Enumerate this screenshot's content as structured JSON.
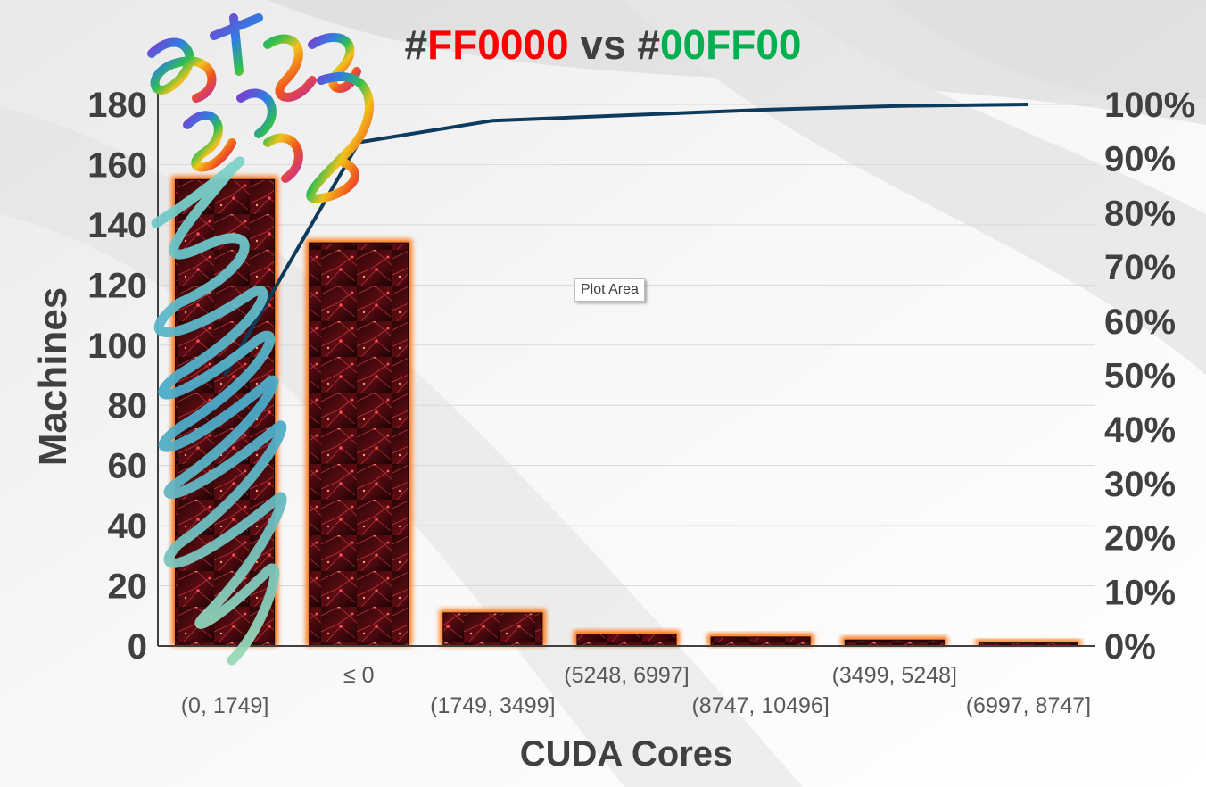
{
  "title": {
    "part1": "#",
    "part2": "FF0000",
    "part3": " vs #",
    "part4": "00FF00"
  },
  "tooltip": "Plot Area",
  "colors": {
    "title_dark": "#404040",
    "title_red": "#FF0000",
    "title_green": "#00B050",
    "bar_glow": "#FF6A00",
    "bar_fill": "#1a0505",
    "line": "#0E3A5C",
    "axis_text": "#404040"
  },
  "chart_data": {
    "type": "bar",
    "title": "#FF0000 vs #00FF00",
    "xlabel": "CUDA Cores",
    "ylabel": "Machines",
    "categories": [
      "(0, 1749]",
      "≤ 0",
      "(1749, 3499]",
      "(5248, 6997]",
      "(8747, 10496]",
      "(3499, 5248]",
      "(6997, 8747]"
    ],
    "values": [
      155,
      134,
      11,
      4,
      3,
      2,
      1
    ],
    "ylim": [
      0,
      180
    ],
    "yticks": [
      "0",
      "20",
      "40",
      "60",
      "80",
      "100",
      "120",
      "140",
      "160",
      "180"
    ],
    "y2ticks": [
      "0%",
      "10%",
      "20%",
      "30%",
      "40%",
      "50%",
      "60%",
      "70%",
      "80%",
      "90%",
      "100%"
    ],
    "y2lim": [
      0,
      100
    ],
    "cumulative_series": {
      "type": "line",
      "values": [
        50,
        93,
        97,
        98,
        99,
        99.7,
        100
      ]
    },
    "grid": true,
    "legend": "none"
  }
}
